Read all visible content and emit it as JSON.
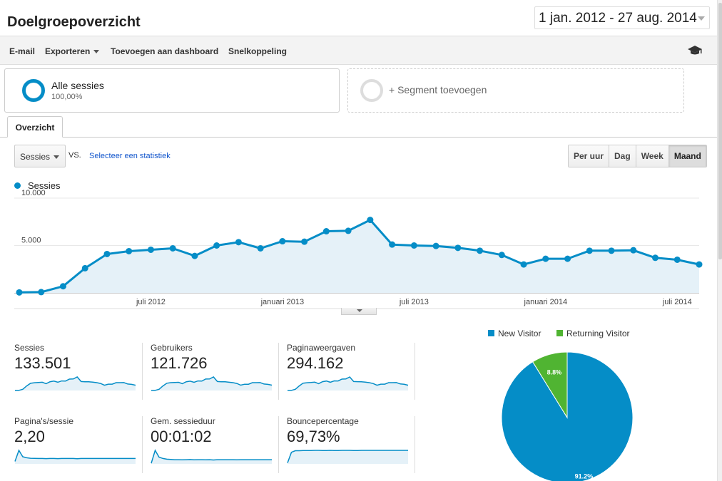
{
  "header": {
    "title": "Doelgroepoverzicht",
    "date_range": "1 jan. 2012 - 27 aug. 2014"
  },
  "toolbar": {
    "email": "E-mail",
    "export": "Exporteren",
    "add_dashboard": "Toevoegen aan dashboard",
    "shortcut": "Snelkoppeling",
    "help_icon": "graduation-cap-icon"
  },
  "segments": {
    "active_name": "Alle sessies",
    "active_pct": "100,00%",
    "add_label": "+ Segment toevoegen"
  },
  "tabs": {
    "overview": "Overzicht"
  },
  "controls": {
    "metric": "Sessies",
    "vs": "VS.",
    "select_stat": "Selecteer een statistiek",
    "periods": [
      {
        "label": "Per uur",
        "active": false
      },
      {
        "label": "Dag",
        "active": false
      },
      {
        "label": "Week",
        "active": false
      },
      {
        "label": "Maand",
        "active": true
      }
    ]
  },
  "colors": {
    "primary": "#058dc7",
    "secondary": "#50b432",
    "area_fill": "#e5f1f8"
  },
  "chart_data": [
    {
      "type": "line",
      "series": [
        {
          "name": "Sessies",
          "values": [
            50,
            80,
            700,
            2600,
            4100,
            4400,
            4550,
            4700,
            3900,
            5000,
            5350,
            4700,
            5450,
            5400,
            6500,
            6550,
            7700,
            5100,
            5000,
            4950,
            4750,
            4450,
            4000,
            3000,
            3600,
            3600,
            4450,
            4450,
            4500,
            3700,
            3500,
            3000
          ]
        }
      ],
      "yticks": [
        "10.000",
        "5.000"
      ],
      "ytick_values": [
        10000,
        5000
      ],
      "ylim": [
        0,
        10000
      ],
      "xtick_labels": [
        "juli 2012",
        "januari 2013",
        "juli 2013",
        "januari 2014",
        "juli 2014"
      ],
      "xtick_index": [
        6,
        12,
        18,
        24,
        30
      ]
    },
    {
      "type": "pie",
      "series": [
        {
          "name": "New Visitor",
          "value": 91.2,
          "label": "91.2%",
          "color": "#058dc7"
        },
        {
          "name": "Returning Visitor",
          "value": 8.8,
          "label": "8.8%",
          "color": "#50b432"
        }
      ]
    }
  ],
  "scorecards": [
    {
      "label": "Sessies",
      "value": "133.501",
      "spark": [
        50,
        80,
        700,
        2600,
        4100,
        4400,
        4550,
        4700,
        3900,
        5000,
        5350,
        4700,
        5450,
        5400,
        6500,
        6550,
        7700,
        5100,
        5000,
        4950,
        4750,
        4450,
        4000,
        3000,
        3600,
        3600,
        4450,
        4450,
        4500,
        3700,
        3500,
        3000
      ]
    },
    {
      "label": "Gebruikers",
      "value": "121.726",
      "spark": [
        50,
        70,
        650,
        2400,
        3800,
        4100,
        4200,
        4300,
        3600,
        4600,
        4900,
        4300,
        5000,
        4950,
        6000,
        6050,
        7100,
        4700,
        4600,
        4550,
        4350,
        4100,
        3700,
        2800,
        3300,
        3300,
        4100,
        4100,
        4150,
        3400,
        3200,
        2800
      ]
    },
    {
      "label": "Paginaweergaven",
      "value": "294.162",
      "spark": [
        150,
        200,
        1500,
        5600,
        9000,
        9500,
        9800,
        10200,
        8400,
        10800,
        11600,
        10100,
        11800,
        11700,
        14000,
        14200,
        16600,
        11000,
        10800,
        10700,
        10300,
        9600,
        8600,
        6500,
        7800,
        7800,
        9600,
        9600,
        9700,
        8000,
        7600,
        6500
      ]
    },
    {
      "label": "Pagina's/sessie",
      "value": "2,20",
      "spark": [
        1.0,
        5.5,
        2.9,
        2.5,
        2.3,
        2.25,
        2.2,
        2.2,
        2.15,
        2.2,
        2.2,
        2.15,
        2.2,
        2.2,
        2.2,
        2.2,
        2.1,
        2.2,
        2.2,
        2.2,
        2.2,
        2.2,
        2.2,
        2.2,
        2.2,
        2.2,
        2.2,
        2.2,
        2.2,
        2.2,
        2.2,
        2.2
      ]
    },
    {
      "label": "Gem. sessieduur",
      "value": "00:01:02",
      "spark": [
        10,
        200,
        100,
        80,
        70,
        65,
        62,
        62,
        60,
        62,
        64,
        60,
        62,
        62,
        60,
        62,
        58,
        62,
        62,
        62,
        62,
        62,
        60,
        62,
        62,
        62,
        62,
        62,
        62,
        62,
        62,
        62
      ]
    },
    {
      "label": "Bouncepercentage",
      "value": "69,73%",
      "spark": [
        5,
        60,
        68,
        68,
        69,
        69,
        69,
        70,
        70,
        69,
        69,
        70,
        69,
        69,
        70,
        70,
        70,
        69,
        69,
        70,
        70,
        70,
        70,
        70,
        70,
        70,
        70,
        70,
        70,
        70,
        70,
        70
      ]
    }
  ]
}
